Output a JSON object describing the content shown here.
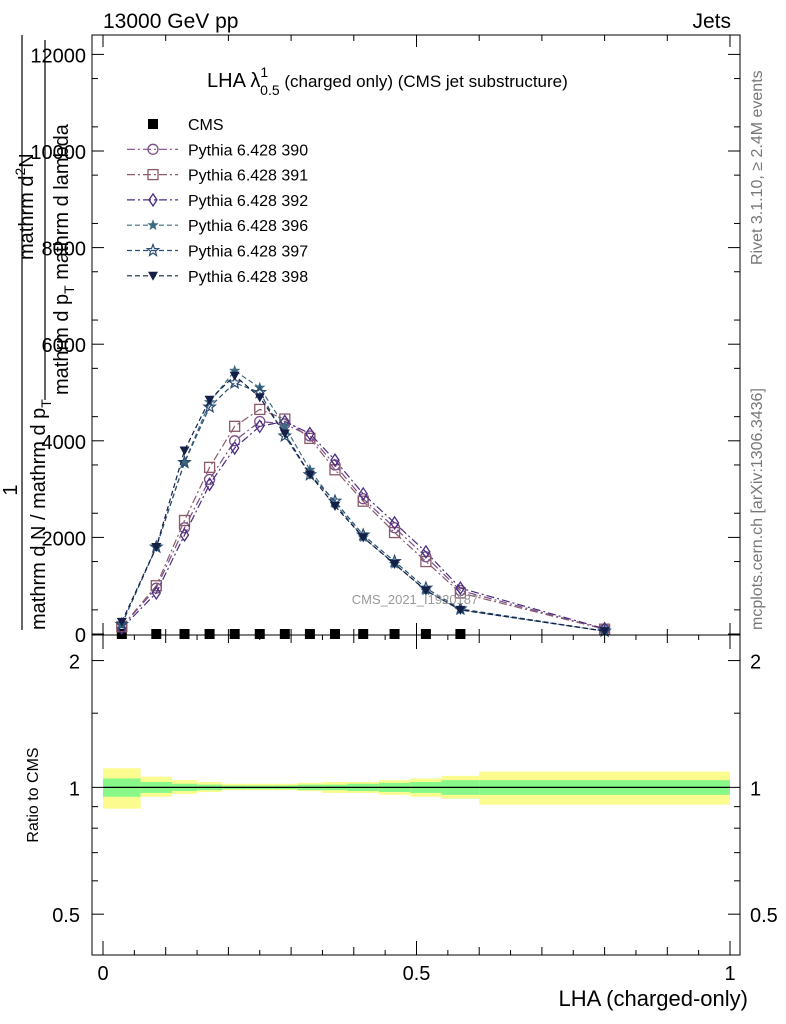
{
  "header": {
    "left": "13000 GeV pp",
    "right": "Jets"
  },
  "side": {
    "rivet": "Rivet 3.1.10, ≥ 2.4M events",
    "mcplots": "mcplots.cern.ch [arXiv:1306.3436]"
  },
  "watermark": "CMS_2021_I1920187",
  "chart_data": [
    {
      "type": "line",
      "title": {
        "main": "LHA λ",
        "sup": "1",
        "sub": "0.5",
        "rest": " (charged only) (CMS jet substructure)"
      },
      "ylabel": {
        "one": "1",
        "denominator": "mathrm d N / mathrm d p",
        "den_sub": "T",
        "numerator1": "mathrm d",
        "numerator_sup": "2",
        "numerator2": "N",
        "numerator_line2": "mathrm d p",
        "numerator_line2_sub": "T",
        "numerator_line2_end": " mathrm d lambda"
      },
      "xlim": [
        0,
        1
      ],
      "ylim": [
        0,
        12500
      ],
      "yticks": [
        0,
        2000,
        4000,
        6000,
        8000,
        10000,
        12000
      ],
      "ytick_labels": [
        "0",
        "2000",
        "4000",
        "6000",
        "8000",
        "10000",
        "12000"
      ],
      "legend_position": "top-left",
      "series": [
        {
          "name": "CMS",
          "color": "#000000",
          "marker": "square-filled",
          "x": [
            0.03,
            0.085,
            0.13,
            0.17,
            0.21,
            0.25,
            0.29,
            0.33,
            0.37,
            0.415,
            0.465,
            0.515,
            0.57
          ],
          "values": [
            0,
            0,
            0,
            0,
            0,
            0,
            0,
            0,
            0,
            0,
            0,
            0,
            0
          ]
        },
        {
          "name": "Pythia 6.428 390",
          "color": "#7a4f88",
          "marker": "circle-open",
          "dash": "8,3,2,3",
          "x": [
            0.03,
            0.085,
            0.13,
            0.17,
            0.21,
            0.25,
            0.29,
            0.33,
            0.37,
            0.415,
            0.465,
            0.515,
            0.57,
            0.8
          ],
          "values": [
            150,
            950,
            2200,
            3200,
            4000,
            4400,
            4350,
            4100,
            3500,
            2800,
            2200,
            1600,
            900,
            100
          ]
        },
        {
          "name": "Pythia 6.428 391",
          "color": "#8a5a6a",
          "marker": "square-open",
          "dash": "8,3,2,3",
          "x": [
            0.03,
            0.085,
            0.13,
            0.17,
            0.21,
            0.25,
            0.29,
            0.33,
            0.37,
            0.415,
            0.465,
            0.515,
            0.57,
            0.8
          ],
          "values": [
            150,
            1000,
            2350,
            3450,
            4300,
            4650,
            4450,
            4050,
            3400,
            2750,
            2100,
            1500,
            850,
            100
          ]
        },
        {
          "name": "Pythia 6.428 392",
          "color": "#4b2d82",
          "marker": "diamond-open",
          "dash": "8,3,2,3",
          "x": [
            0.03,
            0.085,
            0.13,
            0.17,
            0.21,
            0.25,
            0.29,
            0.33,
            0.37,
            0.415,
            0.465,
            0.515,
            0.57,
            0.8
          ],
          "values": [
            120,
            850,
            2050,
            3100,
            3850,
            4300,
            4400,
            4150,
            3600,
            2900,
            2300,
            1700,
            950,
            110
          ]
        },
        {
          "name": "Pythia 6.428 396",
          "color": "#3f6b82",
          "marker": "star-filled",
          "dash": "5,3",
          "x": [
            0.03,
            0.085,
            0.13,
            0.17,
            0.21,
            0.25,
            0.29,
            0.33,
            0.37,
            0.415,
            0.465,
            0.515,
            0.57,
            0.8
          ],
          "values": [
            200,
            1800,
            3550,
            4800,
            5450,
            5100,
            4300,
            3400,
            2700,
            2000,
            1450,
            900,
            500,
            60
          ]
        },
        {
          "name": "Pythia 6.428 397",
          "color": "#2b4d72",
          "marker": "star-open",
          "dash": "5,3",
          "x": [
            0.03,
            0.085,
            0.13,
            0.17,
            0.21,
            0.25,
            0.29,
            0.33,
            0.37,
            0.415,
            0.465,
            0.515,
            0.57,
            0.8
          ],
          "values": [
            200,
            1800,
            3550,
            4700,
            5200,
            5000,
            4100,
            3300,
            2750,
            2050,
            1500,
            950,
            520,
            60
          ]
        },
        {
          "name": "Pythia 6.428 398",
          "color": "#152048",
          "marker": "triangle-down-filled",
          "dash": "5,3",
          "x": [
            0.03,
            0.085,
            0.13,
            0.17,
            0.21,
            0.25,
            0.29,
            0.33,
            0.37,
            0.415,
            0.465,
            0.515,
            0.57,
            0.8
          ],
          "values": [
            250,
            1800,
            3800,
            4850,
            5350,
            4900,
            4150,
            3300,
            2650,
            2000,
            1450,
            900,
            500,
            60
          ]
        }
      ]
    },
    {
      "type": "line",
      "ylabel": "Ratio to CMS",
      "xlabel": "LHA (charged-only)",
      "xlim": [
        0,
        1
      ],
      "ylim": [
        0.4,
        2.3
      ],
      "log_y": true,
      "yticks": [
        0.5,
        1,
        2
      ],
      "ytick_labels": [
        "0.5",
        "1",
        "2"
      ],
      "xticks": [
        0,
        0.5,
        1
      ],
      "xtick_labels": [
        "0",
        "0.5",
        "1"
      ],
      "reference_line": 1,
      "bins": [
        0,
        0.06,
        0.11,
        0.15,
        0.19,
        0.23,
        0.27,
        0.31,
        0.35,
        0.39,
        0.44,
        0.49,
        0.54,
        0.6,
        1.0
      ],
      "band_inner_lower": [
        0.95,
        0.97,
        0.98,
        0.985,
        0.99,
        0.99,
        0.99,
        0.985,
        0.985,
        0.98,
        0.975,
        0.97,
        0.96,
        0.96
      ],
      "band_inner_upper": [
        1.05,
        1.03,
        1.02,
        1.015,
        1.01,
        1.01,
        1.01,
        1.015,
        1.015,
        1.02,
        1.025,
        1.03,
        1.04,
        1.04
      ],
      "band_outer_lower": [
        0.89,
        0.95,
        0.965,
        0.975,
        0.985,
        0.985,
        0.985,
        0.98,
        0.97,
        0.97,
        0.96,
        0.95,
        0.94,
        0.91
      ],
      "band_outer_upper": [
        1.11,
        1.06,
        1.04,
        1.03,
        1.02,
        1.02,
        1.02,
        1.025,
        1.03,
        1.03,
        1.04,
        1.05,
        1.065,
        1.09
      ],
      "band_inner_color": "#88f888",
      "band_outer_color": "#fbfb90"
    }
  ]
}
